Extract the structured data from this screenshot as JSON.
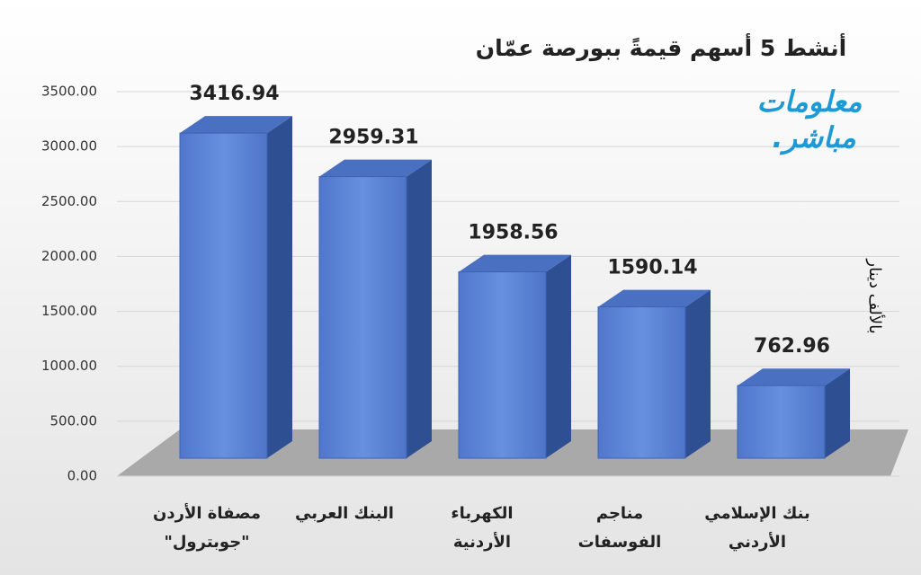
{
  "chart_data": {
    "type": "bar3d",
    "title": "أنشط 5 أسهم قيمةً ببورصة عمّان",
    "y_axis_label": "بالألف دينار",
    "logo": [
      "معلومات",
      "مباشر."
    ],
    "categories": [
      [
        "مصفاة الأردن",
        "\"جوبترول\""
      ],
      [
        "البنك العربي"
      ],
      [
        "الكهرباء",
        "الأردنية"
      ],
      [
        "مناجم",
        "الفوسفات"
      ],
      [
        "بنك الإسلامي",
        "الأردني"
      ]
    ],
    "values": [
      3416.94,
      2959.31,
      1958.56,
      1590.14,
      762.96
    ],
    "color": "#5b85d8",
    "ylim": [
      0,
      3500
    ],
    "yticks": [
      {
        "value": 0,
        "label": "0.00"
      },
      {
        "value": 500,
        "label": "500.00"
      },
      {
        "value": 1000,
        "label": "1000.00"
      },
      {
        "value": 1500,
        "label": "1500.00"
      },
      {
        "value": 2000,
        "label": "2000.00"
      },
      {
        "value": 2500,
        "label": "2500.00"
      },
      {
        "value": 3000,
        "label": "3000.00"
      },
      {
        "value": 3500,
        "label": "3500.00"
      }
    ],
    "grid": true
  }
}
